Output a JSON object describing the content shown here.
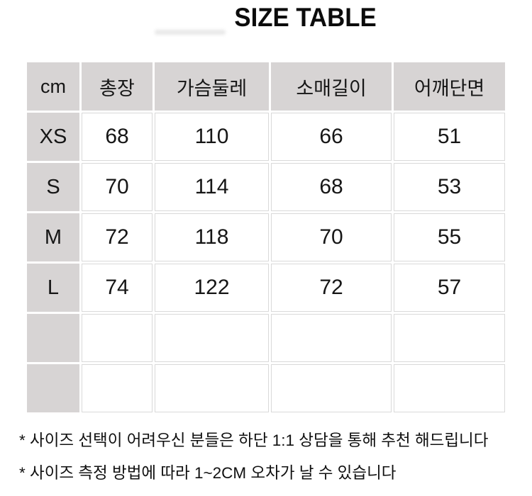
{
  "title": "SIZE TABLE",
  "table": {
    "unit_label": "cm",
    "columns": [
      "총장",
      "가슴둘레",
      "소매길이",
      "어깨단면"
    ],
    "rows": [
      {
        "size": "XS",
        "values": [
          "68",
          "110",
          "66",
          "51"
        ]
      },
      {
        "size": "S",
        "values": [
          "70",
          "114",
          "68",
          "53"
        ]
      },
      {
        "size": "M",
        "values": [
          "72",
          "118",
          "70",
          "55"
        ]
      },
      {
        "size": "L",
        "values": [
          "74",
          "122",
          "72",
          "57"
        ]
      },
      {
        "size": "",
        "values": [
          "",
          "",
          "",
          ""
        ]
      },
      {
        "size": "",
        "values": [
          "",
          "",
          "",
          ""
        ]
      }
    ],
    "colors": {
      "label_cell_bg": "#d7d4d4",
      "data_cell_border": "#d9d9d9",
      "text": "#161616"
    }
  },
  "notes": [
    "* 사이즈 선택이 어려우신 분들은 하단 1:1 상담을 통해 추천 해드립니다",
    "* 사이즈 측정 방법에 따라 1~2CM 오차가 날 수 있습니다"
  ],
  "chart_data": {
    "type": "table",
    "title": "SIZE TABLE",
    "unit": "cm",
    "columns": [
      "cm",
      "총장",
      "가슴둘레",
      "소매길이",
      "어깨단면"
    ],
    "rows": [
      [
        "XS",
        68,
        110,
        66,
        51
      ],
      [
        "S",
        70,
        114,
        68,
        53
      ],
      [
        "M",
        72,
        118,
        70,
        55
      ],
      [
        "L",
        74,
        122,
        72,
        57
      ]
    ],
    "empty_trailing_rows": 2,
    "notes": [
      "* 사이즈 선택이 어려우신 분들은 하단 1:1 상담을 통해 추천 해드립니다",
      "* 사이즈 측정 방법에 따라 1~2CM 오차가 날 수 있습니다"
    ]
  }
}
